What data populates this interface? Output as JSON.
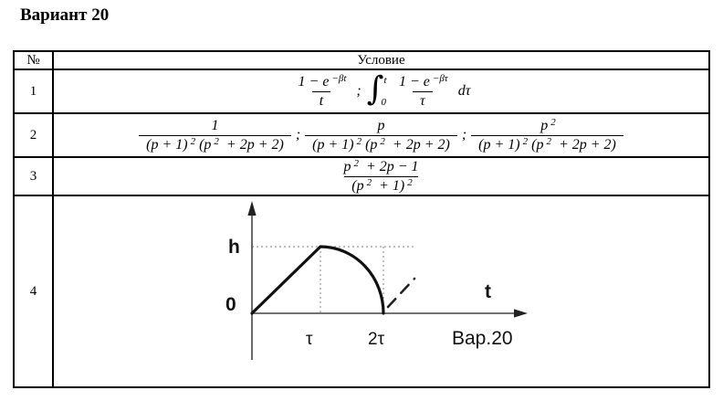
{
  "title": "Вариант 20",
  "table": {
    "header": {
      "num": "№",
      "condition": "Условие"
    },
    "rows": [
      {
        "num": "1"
      },
      {
        "num": "2"
      },
      {
        "num": "3"
      },
      {
        "num": "4"
      }
    ]
  },
  "formulas": {
    "row1": [
      {
        "frac": {
          "num": [
            {
              "t": "1 − e"
            },
            {
              "sup": "−βt"
            }
          ],
          "den": [
            {
              "t": "t"
            }
          ]
        }
      },
      {
        "t": ";"
      },
      {
        "int": {
          "sup": "t",
          "sub": "0"
        }
      },
      {
        "frac": {
          "num": [
            {
              "t": "1 − e"
            },
            {
              "sup": "−βτ"
            }
          ],
          "den": [
            {
              "t": "τ"
            }
          ]
        }
      },
      {
        "t": "dτ"
      }
    ],
    "row2": [
      {
        "frac": {
          "num": [
            {
              "t": "1"
            }
          ],
          "den": [
            {
              "t": "(p + 1)"
            },
            {
              "sup": "2"
            },
            {
              "t": "(p"
            },
            {
              "sup": "2"
            },
            {
              "t": " + 2p + 2)"
            }
          ]
        }
      },
      {
        "t": ";"
      },
      {
        "frac": {
          "num": [
            {
              "t": "p"
            }
          ],
          "den": [
            {
              "t": "(p + 1)"
            },
            {
              "sup": "2"
            },
            {
              "t": "(p"
            },
            {
              "sup": "2"
            },
            {
              "t": " + 2p + 2)"
            }
          ]
        }
      },
      {
        "t": ";"
      },
      {
        "frac": {
          "num": [
            {
              "t": "p"
            },
            {
              "sup": "2"
            }
          ],
          "den": [
            {
              "t": "(p + 1)"
            },
            {
              "sup": "2"
            },
            {
              "t": "(p"
            },
            {
              "sup": "2"
            },
            {
              "t": " + 2p + 2)"
            }
          ]
        }
      }
    ],
    "row3": [
      {
        "frac": {
          "num": [
            {
              "t": "p"
            },
            {
              "sup": "2"
            },
            {
              "t": " + 2p − 1"
            }
          ],
          "den": [
            {
              "t": "(p"
            },
            {
              "sup": "2"
            },
            {
              "t": " + 1)"
            },
            {
              "sup": "2"
            }
          ]
        }
      }
    ]
  },
  "graph": {
    "y_level_label": "h",
    "origin_label": "0",
    "x_axis_label": "t",
    "tick_tau": "τ",
    "tick_2tau": "2τ",
    "caption": "Вар.20",
    "shape": "linear rise from (0,0) to (τ,h), concave fall to zero at (2τ,0), dashed repeat after 2τ",
    "colors": {
      "curve": "#111111",
      "axis": "#444444",
      "dotted": "#999999"
    }
  }
}
